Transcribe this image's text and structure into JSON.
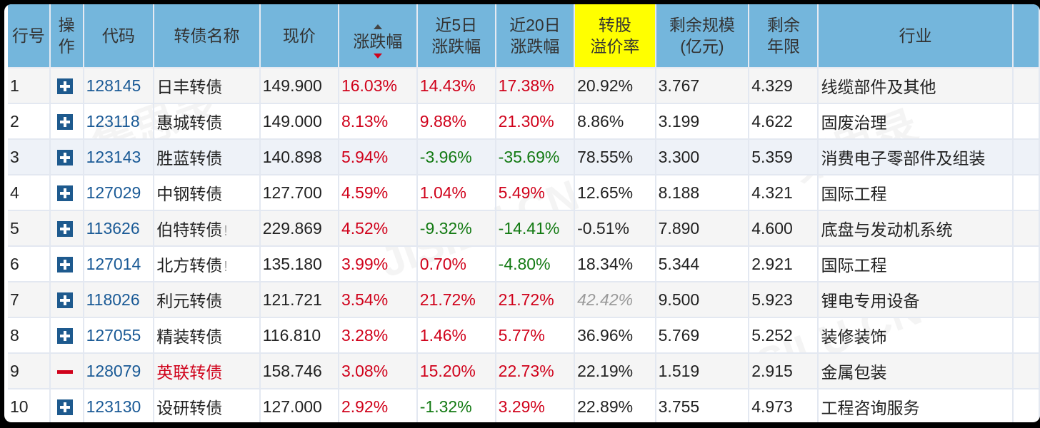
{
  "watermark": {
    "cn": "集思录",
    "en": "JISILU.CN"
  },
  "headers": {
    "row_no": "行号",
    "op_1": "操",
    "op_2": "作",
    "code": "代码",
    "name": "转债名称",
    "price": "现价",
    "change": "涨跌幅",
    "chg5_1": "近5日",
    "chg5_2": "涨跌幅",
    "chg20_1": "近20日",
    "chg20_2": "涨跌幅",
    "premium_1": "转股",
    "premium_2": "溢价率",
    "size_1": "剩余规模",
    "size_2": "(亿元)",
    "years_1": "剩余",
    "years_2": "年限",
    "industry": "行业"
  },
  "colors": {
    "header_bg": "#74b6dc",
    "highlight_header": "#ffff00",
    "up": "#d0021b",
    "down": "#137a13",
    "code_link": "#1a5a96"
  },
  "rows": [
    {
      "no": "1",
      "action": "plus",
      "code": "128145",
      "name": "日丰转债",
      "warn": "",
      "price": "149.900",
      "chg": "16.03%",
      "chg5": "14.43%",
      "chg20": "17.38%",
      "premium": "20.92%",
      "size": "3.767",
      "years": "4.329",
      "industry": "线缆部件及其他"
    },
    {
      "no": "2",
      "action": "plus",
      "code": "123118",
      "name": "惠城转债",
      "warn": "",
      "price": "149.000",
      "chg": "8.13%",
      "chg5": "9.88%",
      "chg20": "21.30%",
      "premium": "8.86%",
      "size": "3.199",
      "years": "4.622",
      "industry": "固废治理"
    },
    {
      "no": "3",
      "action": "plus",
      "code": "123143",
      "name": "胜蓝转债",
      "warn": "",
      "price": "140.898",
      "chg": "5.94%",
      "chg5": "-3.96%",
      "chg20": "-35.69%",
      "premium": "78.55%",
      "size": "3.300",
      "years": "5.359",
      "industry": "消费电子零部件及组装"
    },
    {
      "no": "4",
      "action": "plus",
      "code": "127029",
      "name": "中钢转债",
      "warn": "",
      "price": "127.700",
      "chg": "4.59%",
      "chg5": "1.04%",
      "chg20": "5.49%",
      "premium": "12.65%",
      "size": "8.188",
      "years": "4.321",
      "industry": "国际工程"
    },
    {
      "no": "5",
      "action": "plus",
      "code": "113626",
      "name": "伯特转债",
      "warn": "!",
      "price": "229.869",
      "chg": "4.52%",
      "chg5": "-9.32%",
      "chg20": "-14.41%",
      "premium": "-0.51%",
      "size": "7.890",
      "years": "4.600",
      "industry": "底盘与发动机系统"
    },
    {
      "no": "6",
      "action": "plus",
      "code": "127014",
      "name": "北方转债",
      "warn": "!",
      "price": "135.180",
      "chg": "3.99%",
      "chg5": "0.70%",
      "chg20": "-4.80%",
      "premium": "18.34%",
      "size": "5.344",
      "years": "2.921",
      "industry": "国际工程"
    },
    {
      "no": "7",
      "action": "plus",
      "code": "118026",
      "name": "利元转债",
      "warn": "",
      "price": "121.721",
      "chg": "3.54%",
      "chg5": "21.72%",
      "chg20": "21.72%",
      "premium": "42.42%",
      "size": "9.500",
      "years": "5.923",
      "industry": "锂电专用设备"
    },
    {
      "no": "8",
      "action": "plus",
      "code": "127055",
      "name": "精装转债",
      "warn": "",
      "price": "116.810",
      "chg": "3.28%",
      "chg5": "1.46%",
      "chg20": "5.77%",
      "premium": "36.96%",
      "size": "5.769",
      "years": "5.252",
      "industry": "装修装饰"
    },
    {
      "no": "9",
      "action": "minus",
      "code": "128079",
      "name": "英联转债",
      "warn": "",
      "price": "158.746",
      "chg": "3.08%",
      "chg5": "15.20%",
      "chg20": "22.73%",
      "premium": "22.19%",
      "size": "1.519",
      "years": "2.915",
      "industry": "金属包装"
    },
    {
      "no": "10",
      "action": "plus",
      "code": "123130",
      "name": "设研转债",
      "warn": "",
      "price": "127.000",
      "chg": "2.92%",
      "chg5": "-1.32%",
      "chg20": "3.29%",
      "premium": "22.89%",
      "size": "3.755",
      "years": "4.973",
      "industry": "工程咨询服务"
    }
  ]
}
